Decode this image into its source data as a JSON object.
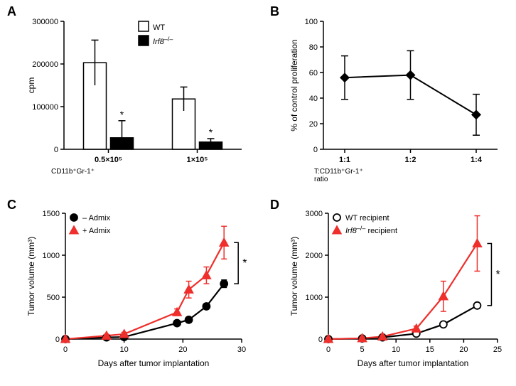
{
  "panels": {
    "A": {
      "label": "A",
      "type": "bar",
      "ylim": [
        0,
        300000
      ],
      "ytick_step": 100000,
      "ylabel": "cpm",
      "xlabel": "CD11b⁺Gr-1⁺",
      "categories": [
        "0.5×10⁵",
        "1×10⁵"
      ],
      "groups": [
        {
          "name": "WT",
          "color": "#ffffff",
          "values": [
            203000,
            118000
          ],
          "errors": [
            53000,
            28000
          ]
        },
        {
          "name": "Irf8–/–",
          "color": "#000000",
          "values": [
            27000,
            17000
          ],
          "errors": [
            40000,
            8000
          ]
        }
      ],
      "sig_marker": "*",
      "bar_border": "#000000",
      "error_color": "#000000"
    },
    "B": {
      "label": "B",
      "type": "line",
      "ylim": [
        0,
        100
      ],
      "ytick_step": 20,
      "ylabel": "% of control proliferation",
      "xlabel": "T:CD11b⁺Gr-1⁺\nratio",
      "xcategories": [
        "1:1",
        "1:2",
        "1:4"
      ],
      "series": [
        {
          "name": "",
          "color": "#000000",
          "marker": "diamond",
          "values": [
            56,
            58,
            27
          ],
          "errors": [
            17,
            19,
            16
          ]
        }
      ]
    },
    "C": {
      "label": "C",
      "type": "line",
      "ylim": [
        0,
        1500
      ],
      "ytick_step": 500,
      "xlim": [
        0,
        30
      ],
      "xtick_step": 10,
      "ylabel": "Tumor volume (mm³)",
      "xlabel": "Days after tumor implantation",
      "xvals": [
        0,
        7,
        10,
        19,
        21,
        24,
        27
      ],
      "series": [
        {
          "name": "– Admix",
          "color": "#000000",
          "marker": "circle",
          "fill": "#000000",
          "values": [
            0,
            20,
            25,
            190,
            230,
            390,
            660
          ],
          "errors": [
            0,
            10,
            10,
            25,
            30,
            30,
            45
          ]
        },
        {
          "name": "+ Admix",
          "color": "#ee2f2c",
          "marker": "triangle",
          "fill": "#ee2f2c",
          "values": [
            0,
            40,
            60,
            320,
            590,
            760,
            1150
          ],
          "errors": [
            0,
            15,
            20,
            40,
            100,
            100,
            195
          ]
        }
      ],
      "sig_marker": "*",
      "bracket": true
    },
    "D": {
      "label": "D",
      "type": "line",
      "ylim": [
        0,
        3000
      ],
      "ytick_step": 1000,
      "xlim": [
        0,
        25
      ],
      "xtick_step": 5,
      "ylabel": "Tumor volume (mm³)",
      "xlabel": "Days after tumor implantation",
      "xvals": [
        0,
        5,
        8,
        13,
        17,
        22
      ],
      "series": [
        {
          "name": "WT recipient",
          "color": "#000000",
          "marker": "circle",
          "fill": "#ffffff",
          "values": [
            0,
            15,
            40,
            130,
            350,
            800
          ],
          "errors": [
            0,
            10,
            15,
            30,
            50,
            60
          ]
        },
        {
          "name": "Irf8–/– recipient",
          "color": "#ee2f2c",
          "marker": "triangle",
          "fill": "#ee2f2c",
          "values": [
            0,
            20,
            60,
            250,
            1020,
            2280
          ],
          "errors": [
            0,
            10,
            20,
            60,
            360,
            660
          ]
        }
      ],
      "sig_marker": "*",
      "bracket": true
    }
  },
  "colors": {
    "bg": "#ffffff",
    "axis": "#000000",
    "red": "#ee2f2c"
  },
  "title_fontsize": 18,
  "tick_fontsize": 11,
  "label_fontsize": 12,
  "legend_fontsize": 11
}
